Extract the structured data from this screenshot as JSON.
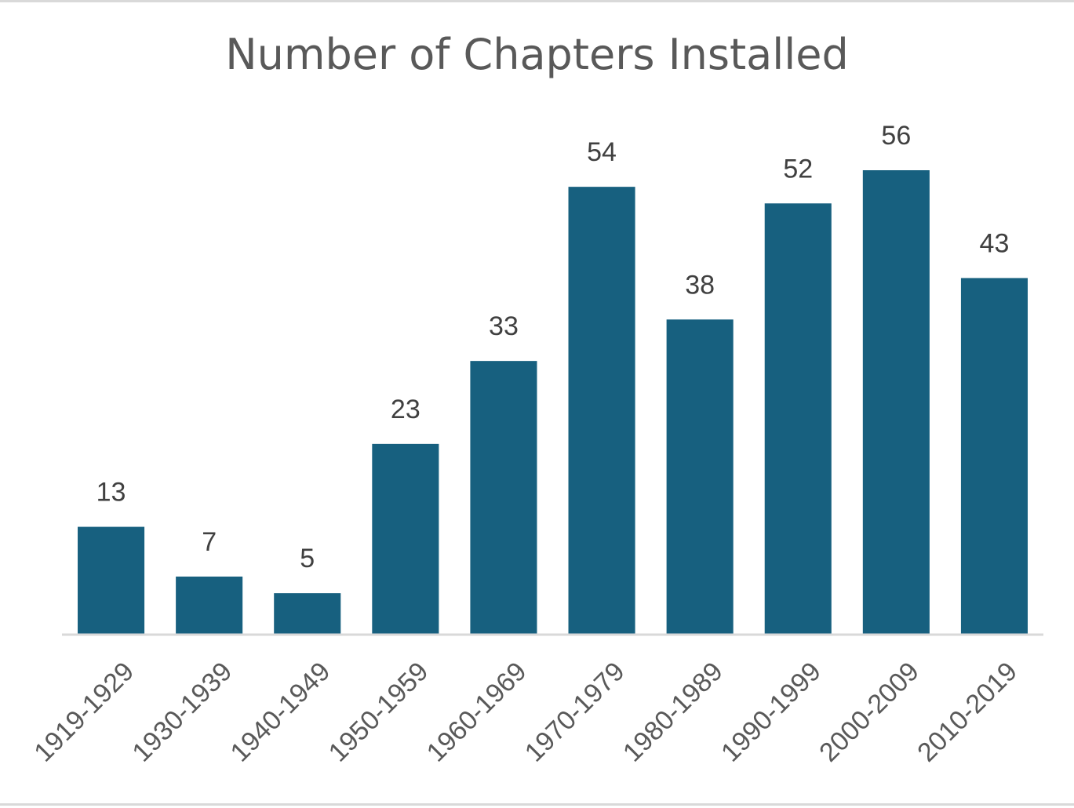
{
  "chart_data": {
    "type": "bar",
    "title": "Number of Chapters Installed",
    "categories": [
      "1919-1929",
      "1930-1939",
      "1940-1949",
      "1950-1959",
      "1960-1969",
      "1970-1979",
      "1980-1989",
      "1990-1999",
      "2000-2009",
      "2010-2019"
    ],
    "values": [
      13,
      7,
      5,
      23,
      33,
      54,
      38,
      52,
      56,
      43
    ],
    "xlabel": "",
    "ylabel": "",
    "ylim": [
      0,
      56
    ],
    "grid": false,
    "legend": "none",
    "data_labels": true,
    "colors": {
      "bar": "#17607f",
      "axis": "#d9d9d9",
      "title": "#595959",
      "value_label": "#404040",
      "tick_label": "#595959"
    }
  }
}
